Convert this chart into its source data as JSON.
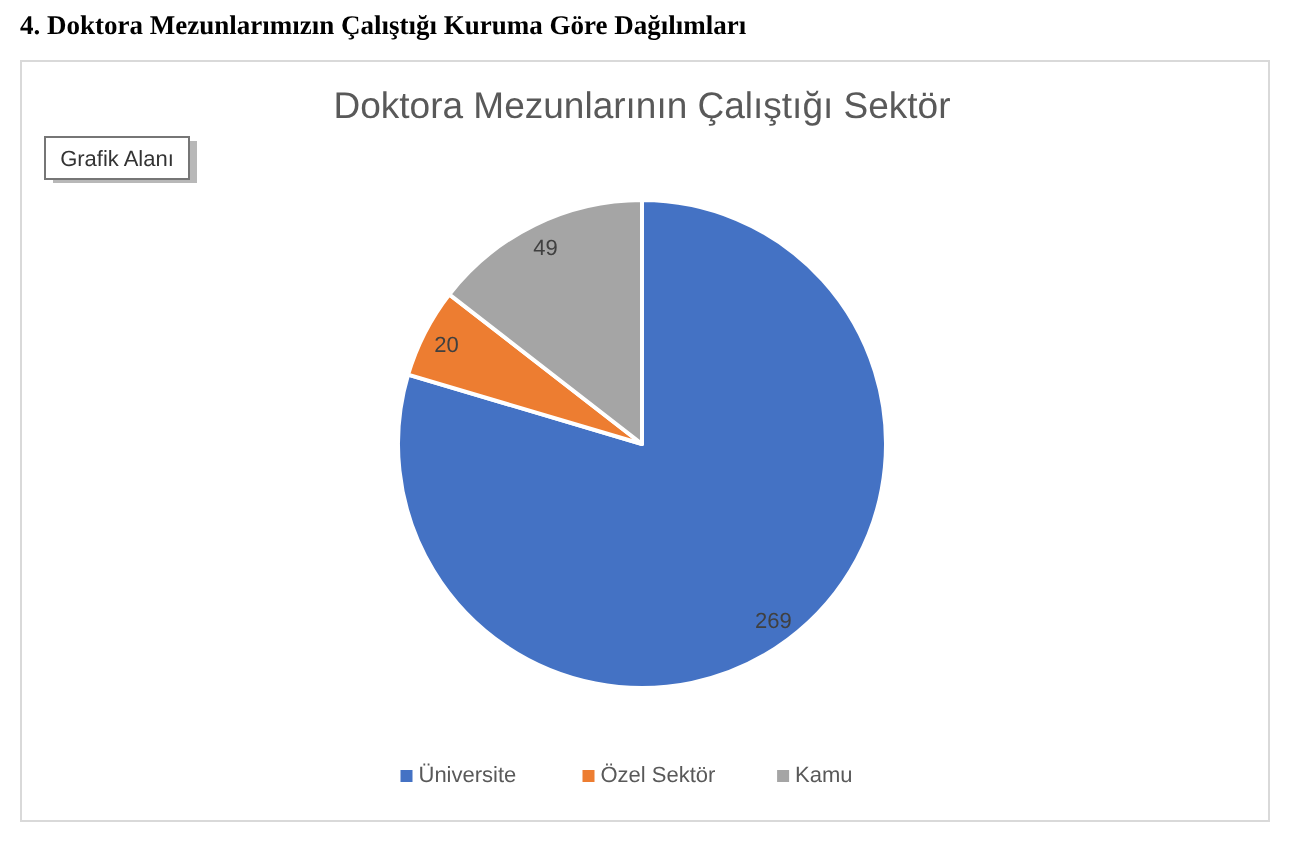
{
  "chart_data": {
    "type": "pie",
    "title": "Doktora Mezunlarının Çalıştığı Sektör",
    "annotations": [
      "4.   Doktora Mezunlarımızın Çalıştığı Kuruma Göre Dağılımları",
      "Grafik Alanı"
    ],
    "categories": [
      "Üniversite",
      "Özel Sektör",
      "Kamu"
    ],
    "values": [
      269,
      20,
      49
    ],
    "colors": [
      "#4472c4",
      "#ed7d31",
      "#a5a5a5"
    ],
    "data_labels": true,
    "legend": "bottom"
  }
}
